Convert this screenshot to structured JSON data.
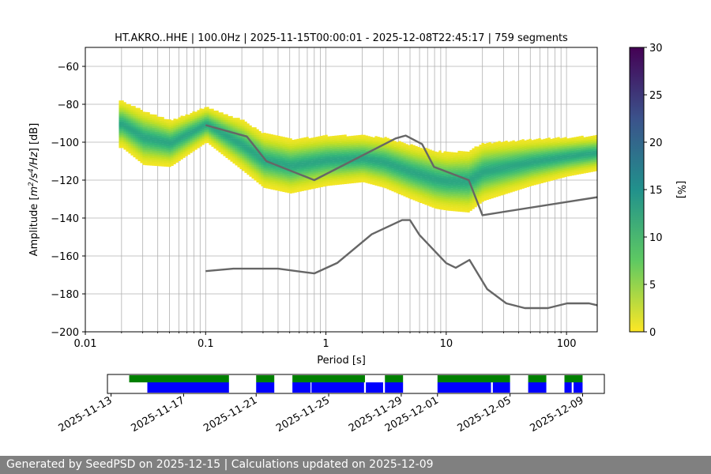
{
  "chart_data": {
    "type": "heatmap",
    "title": "HT.AKRO..HHE | 100.0Hz | 2025-11-15T00:00:01 - 2025-12-08T22:45:17 | 759 segments",
    "xlabel": "Period [s]",
    "ylabel_main": "Amplitude [",
    "ylabel_units": [
      "m",
      "2",
      "/s",
      "4",
      "/Hz",
      "] [dB]"
    ],
    "xscale": "log",
    "xlim": [
      0.01,
      180
    ],
    "ylim": [
      -200,
      -50
    ],
    "xticks": [
      {
        "value": 0.01,
        "label": "0.01"
      },
      {
        "value": 0.1,
        "label": "0.1"
      },
      {
        "value": 1,
        "label": "1"
      },
      {
        "value": 10,
        "label": "10"
      },
      {
        "value": 100,
        "label": "100"
      }
    ],
    "yticks": [
      {
        "value": -60,
        "label": "−60"
      },
      {
        "value": -80,
        "label": "−80"
      },
      {
        "value": -100,
        "label": "−100"
      },
      {
        "value": -120,
        "label": "−120"
      },
      {
        "value": -140,
        "label": "−140"
      },
      {
        "value": -160,
        "label": "−160"
      },
      {
        "value": -180,
        "label": "−180"
      },
      {
        "value": -200,
        "label": "−200"
      }
    ],
    "grid": true,
    "psd_period_range": [
      0.019,
      180
    ],
    "psd_ridge": [
      {
        "period": 0.02,
        "db": -91,
        "spread": 12
      },
      {
        "period": 0.03,
        "db": -98,
        "spread": 14
      },
      {
        "period": 0.05,
        "db": -101,
        "spread": 12
      },
      {
        "period": 0.1,
        "db": -91,
        "spread": 9
      },
      {
        "period": 0.2,
        "db": -102,
        "spread": 13
      },
      {
        "period": 0.3,
        "db": -110,
        "spread": 14
      },
      {
        "period": 0.5,
        "db": -113,
        "spread": 14
      },
      {
        "period": 1,
        "db": -110,
        "spread": 13
      },
      {
        "period": 2,
        "db": -109,
        "spread": 12
      },
      {
        "period": 3,
        "db": -111,
        "spread": 13
      },
      {
        "period": 5,
        "db": -116,
        "spread": 14
      },
      {
        "period": 8,
        "db": -120,
        "spread": 15
      },
      {
        "period": 10,
        "db": -121,
        "spread": 15
      },
      {
        "period": 15,
        "db": -121,
        "spread": 16
      },
      {
        "period": 20,
        "db": -116,
        "spread": 15
      },
      {
        "period": 50,
        "db": -111,
        "spread": 12
      },
      {
        "period": 100,
        "db": -108,
        "spread": 10
      },
      {
        "period": 180,
        "db": -106,
        "spread": 9
      }
    ],
    "nhnm": {
      "name": "NHNM",
      "points": [
        [
          0.1,
          -91
        ],
        [
          0.22,
          -97
        ],
        [
          0.32,
          -110
        ],
        [
          0.8,
          -120
        ],
        [
          3.8,
          -98
        ],
        [
          4.6,
          -96.5
        ],
        [
          6.3,
          -101
        ],
        [
          7.9,
          -113
        ],
        [
          15.4,
          -120
        ],
        [
          20,
          -138.5
        ],
        [
          180,
          -129
        ]
      ]
    },
    "nlnm": {
      "name": "NLNM",
      "points": [
        [
          0.1,
          -168
        ],
        [
          0.17,
          -166.7
        ],
        [
          0.4,
          -166.7
        ],
        [
          0.8,
          -169.2
        ],
        [
          1.24,
          -163.7
        ],
        [
          2.4,
          -148.6
        ],
        [
          4.3,
          -141.1
        ],
        [
          5,
          -141.1
        ],
        [
          6,
          -149
        ],
        [
          10,
          -163.8
        ],
        [
          12,
          -166.2
        ],
        [
          15.6,
          -162.1
        ],
        [
          21.9,
          -177.5
        ],
        [
          31.6,
          -185
        ],
        [
          45,
          -187.5
        ],
        [
          70,
          -187.5
        ],
        [
          101,
          -185
        ],
        [
          154,
          -185
        ],
        [
          180,
          -186
        ]
      ]
    },
    "colorbar": {
      "label": "[%]",
      "min": 0,
      "max": 30,
      "ticks": [
        "0",
        "5",
        "10",
        "15",
        "20",
        "25",
        "30"
      ]
    },
    "timeline": {
      "axis_labels": [
        "2025-11-13",
        "2025-11-17",
        "2025-11-21",
        "2025-11-25",
        "2025-11-29",
        "2025-12-01",
        "2025-12-05",
        "2025-12-09"
      ],
      "axis_label_days": [
        0,
        4,
        8,
        12,
        16,
        18,
        22,
        26
      ],
      "range_days": [
        -0.2,
        27.2
      ],
      "available_color": "#008000",
      "computed_color": "#0000ff",
      "available": [
        [
          1,
          6.5
        ],
        [
          8,
          9
        ],
        [
          10,
          14
        ],
        [
          15.1,
          16.1
        ],
        [
          18,
          22
        ],
        [
          23,
          24
        ],
        [
          25,
          26
        ]
      ],
      "computed": [
        [
          2,
          6.5
        ],
        [
          8,
          9
        ],
        [
          10,
          11
        ],
        [
          11.05,
          13.95
        ],
        [
          14.05,
          15
        ],
        [
          15.1,
          16.1
        ],
        [
          18,
          20.95
        ],
        [
          21.05,
          22
        ],
        [
          23,
          24
        ],
        [
          25,
          25.4
        ],
        [
          25.5,
          26
        ]
      ]
    }
  },
  "footer": {
    "text": "Generated by SeedPSD on 2025-12-15 | Calculations updated on 2025-12-09"
  }
}
